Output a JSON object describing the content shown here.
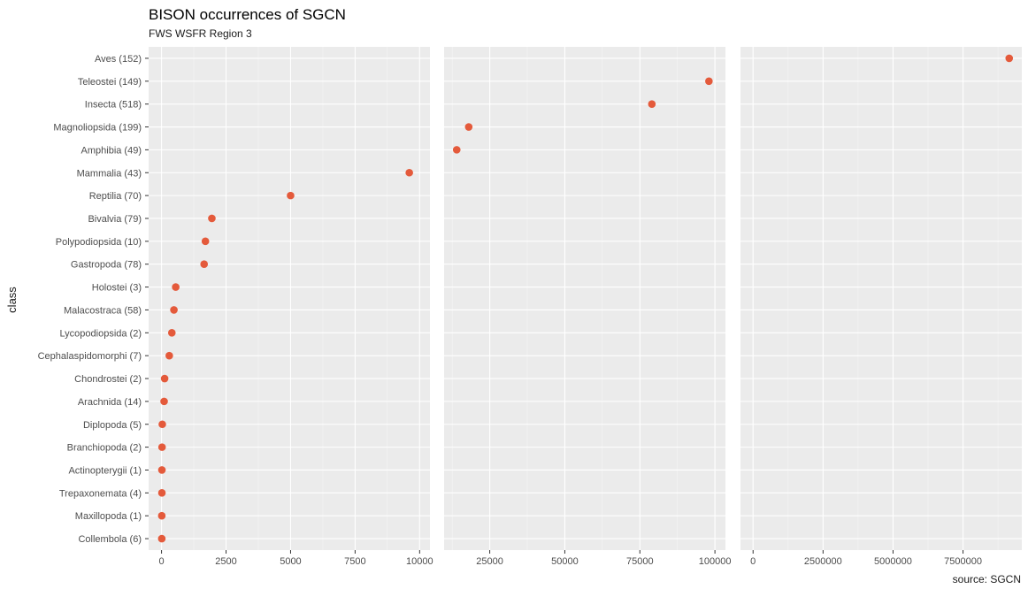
{
  "chart_data": {
    "type": "scatter",
    "title": "BISON occurrences of SGCN",
    "subtitle": "FWS WSFR Region 3",
    "caption": "source: SGCN",
    "ylabel": "class",
    "point_color": "#E45A3B",
    "categories": [
      "Aves (152)",
      "Teleostei (149)",
      "Insecta (518)",
      "Magnoliopsida (199)",
      "Amphibia (49)",
      "Mammalia (43)",
      "Reptilia (70)",
      "Bivalvia (79)",
      "Polypodiopsida (10)",
      "Gastropoda (78)",
      "Holostei (3)",
      "Malacostraca (58)",
      "Lycopodiopsida (2)",
      "Cephalaspidomorphi (7)",
      "Chondrostei (2)",
      "Arachnida (14)",
      "Diplopoda (5)",
      "Branchiopoda (2)",
      "Actinopterygii (1)",
      "Trepaxonemata (4)",
      "Maxillopoda (1)",
      "Collembola (6)"
    ],
    "panels": [
      {
        "xlim": [
          -500,
          10400
        ],
        "ticks": [
          0,
          2500,
          5000,
          7500,
          10000
        ],
        "tick_labels": [
          "0",
          "2500",
          "5000",
          "7500",
          "10000"
        ],
        "points": [
          {
            "category": "Mammalia (43)",
            "value": 9600
          },
          {
            "category": "Reptilia (70)",
            "value": 5000
          },
          {
            "category": "Bivalvia (79)",
            "value": 1950
          },
          {
            "category": "Polypodiopsida (10)",
            "value": 1700
          },
          {
            "category": "Gastropoda (78)",
            "value": 1650
          },
          {
            "category": "Holostei (3)",
            "value": 550
          },
          {
            "category": "Malacostraca (58)",
            "value": 480
          },
          {
            "category": "Lycopodiopsida (2)",
            "value": 400
          },
          {
            "category": "Cephalaspidomorphi (7)",
            "value": 300
          },
          {
            "category": "Chondrostei (2)",
            "value": 120
          },
          {
            "category": "Arachnida (14)",
            "value": 100
          },
          {
            "category": "Diplopoda (5)",
            "value": 30
          },
          {
            "category": "Branchiopoda (2)",
            "value": 20
          },
          {
            "category": "Actinopterygii (1)",
            "value": 15
          },
          {
            "category": "Trepaxonemata (4)",
            "value": 15
          },
          {
            "category": "Maxillopoda (1)",
            "value": 10
          },
          {
            "category": "Collembola (6)",
            "value": 10
          }
        ]
      },
      {
        "xlim": [
          9800,
          103500
        ],
        "ticks": [
          25000,
          50000,
          75000,
          100000
        ],
        "tick_labels": [
          "25000",
          "50000",
          "75000",
          "100000"
        ],
        "points": [
          {
            "category": "Teleostei (149)",
            "value": 98000
          },
          {
            "category": "Insecta (518)",
            "value": 79000
          },
          {
            "category": "Magnoliopsida (199)",
            "value": 18000
          },
          {
            "category": "Amphibia (49)",
            "value": 14000
          }
        ]
      },
      {
        "xlim": [
          -450000,
          9600000
        ],
        "ticks": [
          0,
          2500000,
          5000000,
          7500000
        ],
        "tick_labels": [
          "0",
          "2500000",
          "5000000",
          "7500000"
        ],
        "points": [
          {
            "category": "Aves (152)",
            "value": 9150000
          }
        ]
      }
    ]
  }
}
